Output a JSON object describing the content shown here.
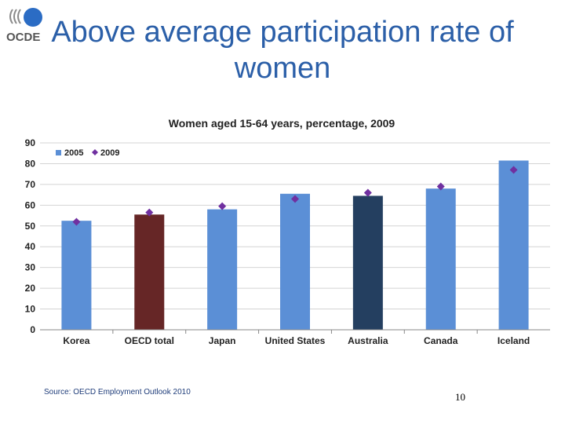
{
  "slide": {
    "title": "Above average participation rate of women",
    "logo_text": "OCDE",
    "source": "Source: OECD Employment Outlook 2010",
    "page_number": "10"
  },
  "colors": {
    "title": "#2b5fa8",
    "bar_default": "#5b8fd6",
    "bar_oecd": "#662626",
    "bar_australia": "#243f60",
    "marker_2009": "#7030a0"
  },
  "chart_data": {
    "type": "bar",
    "title": "Women aged 15-64 years, percentage, 2009",
    "categories": [
      "Korea",
      "OECD total",
      "Japan",
      "United States",
      "Australia",
      "Canada",
      "Iceland"
    ],
    "series": [
      {
        "name": "2005",
        "type": "bar",
        "values": [
          52.5,
          55.5,
          58,
          65.5,
          64.5,
          68,
          81.5
        ]
      },
      {
        "name": "2009",
        "type": "scatter",
        "marker": "diamond",
        "values": [
          52,
          56.5,
          59.5,
          63,
          66,
          69,
          77
        ]
      }
    ],
    "ylim": [
      0,
      90
    ],
    "yticks": [
      0,
      10,
      20,
      30,
      40,
      50,
      60,
      70,
      80,
      90
    ],
    "xlabel": "",
    "ylabel": "",
    "grid": true,
    "legend": "top-left"
  }
}
